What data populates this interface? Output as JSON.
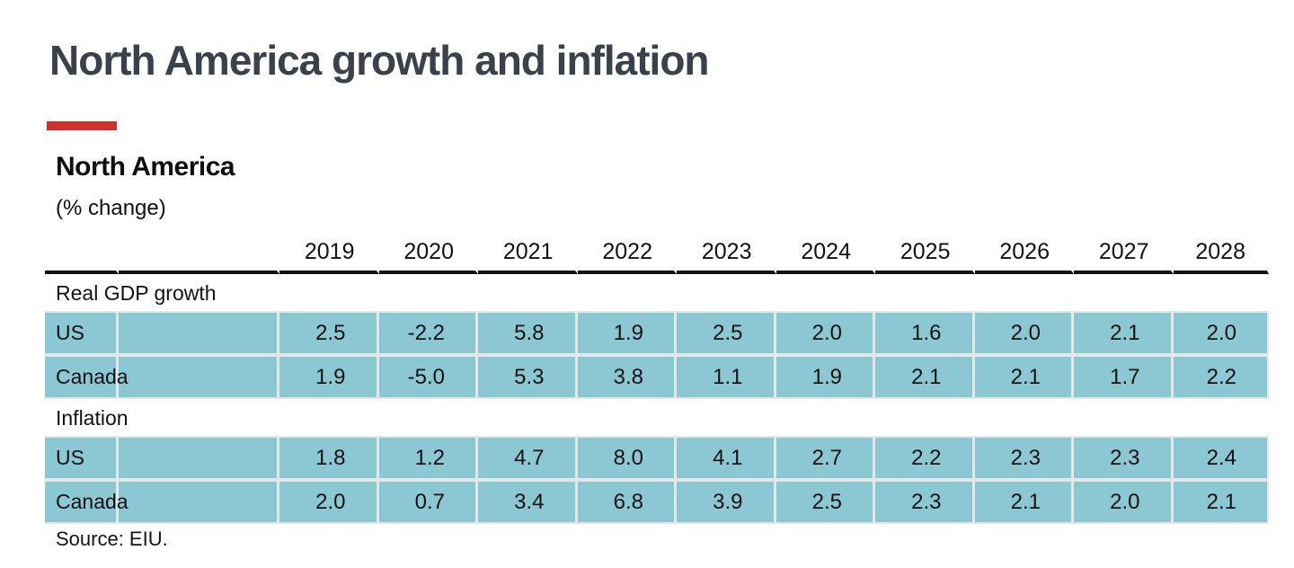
{
  "page_title": "North America growth and inflation",
  "panel": {
    "title": "North America",
    "unit": "(% change)",
    "source": "Source: EIU."
  },
  "chart_data": {
    "type": "table",
    "title": "North America",
    "subtitle_unit": "(% change)",
    "columns": [
      "2019",
      "2020",
      "2021",
      "2022",
      "2023",
      "2024",
      "2025",
      "2026",
      "2027",
      "2028"
    ],
    "sections": [
      {
        "label": "Real GDP growth",
        "rows": [
          {
            "label": "US",
            "values": [
              "2.5",
              "-2.2",
              "5.8",
              "1.9",
              "2.5",
              "2.0",
              "1.6",
              "2.0",
              "2.1",
              "2.0"
            ]
          },
          {
            "label": "Canada",
            "values": [
              "1.9",
              "-5.0",
              "5.3",
              "3.8",
              "1.1",
              "1.9",
              "2.1",
              "2.1",
              "1.7",
              "2.2"
            ]
          }
        ]
      },
      {
        "label": "Inflation",
        "rows": [
          {
            "label": "US",
            "values": [
              "1.8",
              "1.2",
              "4.7",
              "8.0",
              "4.1",
              "2.7",
              "2.2",
              "2.3",
              "2.3",
              "2.4"
            ]
          },
          {
            "label": "Canada",
            "values": [
              "2.0",
              "0.7",
              "3.4",
              "6.8",
              "3.9",
              "2.5",
              "2.3",
              "2.1",
              "2.0",
              "2.1"
            ]
          }
        ]
      }
    ],
    "source": "Source: EIU.",
    "styles": {
      "row_highlight": "#8cc7d4",
      "header_rule": "#141414",
      "title_color": "#3a4149",
      "accent_red": "#d2302c",
      "gap_color": "#e4e8e7"
    }
  }
}
